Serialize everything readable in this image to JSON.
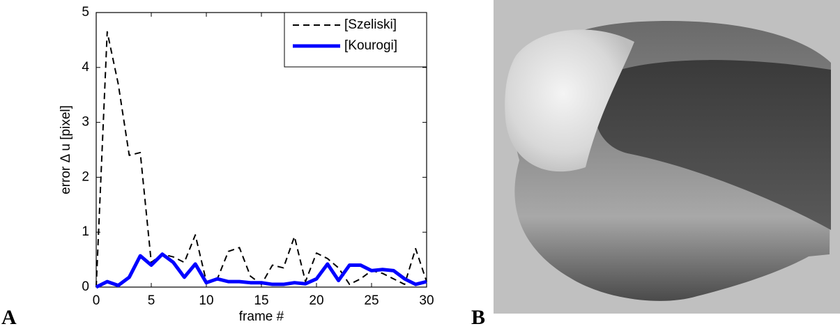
{
  "panel_labels": [
    "A",
    "B"
  ],
  "chart_data": {
    "type": "line",
    "x_label": "frame #",
    "y_label": "error Δ u [pixel]",
    "x": [
      0,
      1,
      2,
      3,
      4,
      5,
      6,
      7,
      8,
      9,
      10,
      11,
      12,
      13,
      14,
      15,
      16,
      17,
      18,
      19,
      20,
      21,
      22,
      23,
      24,
      25,
      26,
      27,
      28,
      29,
      30
    ],
    "series": [
      {
        "name": "[Szeliski]",
        "color": "#000000",
        "line_style": "dashed",
        "line_width": 2,
        "values": [
          0,
          4.65,
          3.7,
          2.4,
          2.45,
          0.45,
          0.6,
          0.55,
          0.45,
          0.95,
          0.1,
          0.15,
          0.65,
          0.72,
          0.2,
          0.05,
          0.4,
          0.35,
          0.92,
          0.1,
          0.62,
          0.52,
          0.35,
          0.05,
          0.15,
          0.3,
          0.25,
          0.15,
          0.05,
          0.7,
          0.1
        ]
      },
      {
        "name": "[Kourogi]",
        "color": "#0000ff",
        "line_style": "solid",
        "line_width": 5,
        "values": [
          0,
          0.1,
          0.03,
          0.18,
          0.57,
          0.4,
          0.6,
          0.45,
          0.18,
          0.42,
          0.08,
          0.15,
          0.1,
          0.1,
          0.08,
          0.08,
          0.05,
          0.05,
          0.08,
          0.06,
          0.15,
          0.42,
          0.12,
          0.4,
          0.4,
          0.3,
          0.32,
          0.3,
          0.15,
          0.05,
          0.1
        ]
      }
    ],
    "xlim": [
      0,
      30
    ],
    "xticks": [
      0,
      5,
      10,
      15,
      20,
      25,
      30
    ],
    "ylim": [
      0,
      5
    ],
    "yticks": [
      0,
      1,
      2,
      3,
      4,
      5
    ],
    "legend": "upper right",
    "grid": false
  }
}
